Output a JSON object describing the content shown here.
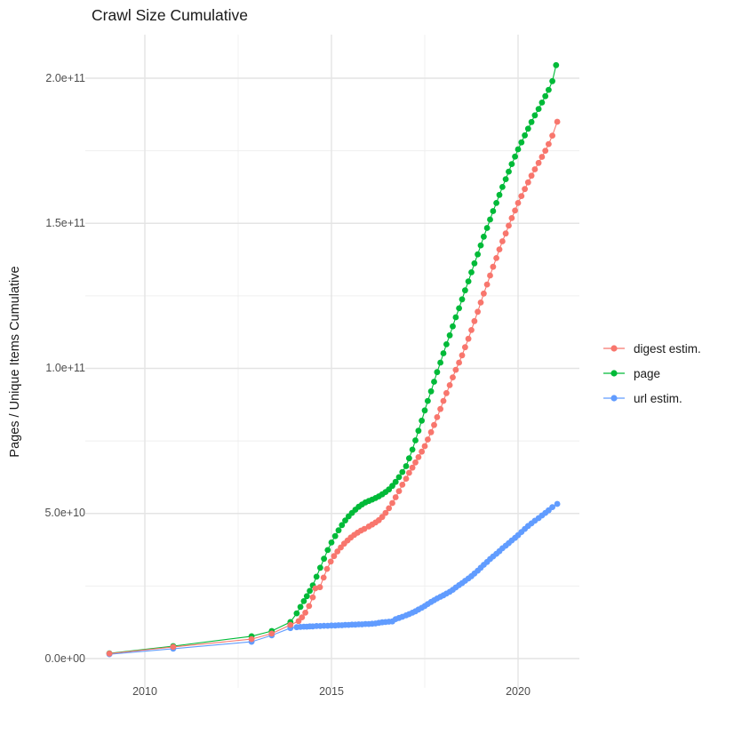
{
  "chart_data": {
    "type": "line",
    "title": "Crawl Size Cumulative",
    "xlabel": "",
    "ylabel": "Pages / Unique Items Cumulative",
    "value_unit": "1e9 pages (billions)",
    "grid": true,
    "legend_position": "right",
    "xlim": [
      2008.4,
      2021.7
    ],
    "ylim": [
      -10,
      215
    ],
    "x_ticks": [
      {
        "value": 2010,
        "label": "2010"
      },
      {
        "value": 2015,
        "label": "2015"
      },
      {
        "value": 2020,
        "label": "2020"
      }
    ],
    "x_minor_ticks": [
      2012.5,
      2017.5
    ],
    "y_ticks": [
      {
        "value": 0,
        "label": "0.0e+00"
      },
      {
        "value": 50,
        "label": "5.0e+10"
      },
      {
        "value": 100,
        "label": "1.0e+11"
      },
      {
        "value": 150,
        "label": "1.5e+11"
      },
      {
        "value": 200,
        "label": "2.0e+11"
      }
    ],
    "y_minor_ticks": [
      25,
      75,
      125,
      175
    ],
    "series": [
      {
        "name": "digest estim.",
        "color": "#F8766D",
        "points": [
          [
            2009.05,
            1.7
          ],
          [
            2010.76,
            4.0
          ],
          [
            2012.86,
            6.7
          ],
          [
            2013.4,
            8.6
          ],
          [
            2013.9,
            11.6
          ],
          [
            2014.12,
            12.9
          ],
          [
            2014.21,
            14.2
          ],
          [
            2014.3,
            15.8
          ],
          [
            2014.4,
            18.1
          ],
          [
            2014.5,
            21.1
          ],
          [
            2014.57,
            24.2
          ],
          [
            2014.69,
            24.6
          ],
          [
            2014.79,
            27.9
          ],
          [
            2014.88,
            30.9
          ],
          [
            2014.98,
            33.4
          ],
          [
            2015.07,
            35.3
          ],
          [
            2015.16,
            36.9
          ],
          [
            2015.25,
            38.3
          ],
          [
            2015.34,
            39.6
          ],
          [
            2015.43,
            40.7
          ],
          [
            2015.52,
            41.7
          ],
          [
            2015.61,
            42.6
          ],
          [
            2015.7,
            43.4
          ],
          [
            2015.79,
            44.1
          ],
          [
            2015.88,
            44.7
          ],
          [
            2016.0,
            45.5
          ],
          [
            2016.09,
            46.2
          ],
          [
            2016.18,
            46.9
          ],
          [
            2016.27,
            47.7
          ],
          [
            2016.36,
            48.8
          ],
          [
            2016.45,
            50.2
          ],
          [
            2016.54,
            51.8
          ],
          [
            2016.63,
            53.6
          ],
          [
            2016.72,
            55.6
          ],
          [
            2016.81,
            57.7
          ],
          [
            2016.9,
            59.9
          ],
          [
            2017.0,
            62.0
          ],
          [
            2017.08,
            64.0
          ],
          [
            2017.17,
            65.8
          ],
          [
            2017.25,
            67.6
          ],
          [
            2017.33,
            69.4
          ],
          [
            2017.42,
            71.3
          ],
          [
            2017.5,
            73.2
          ],
          [
            2017.58,
            75.5
          ],
          [
            2017.67,
            78.0
          ],
          [
            2017.75,
            80.5
          ],
          [
            2017.83,
            83.2
          ],
          [
            2017.92,
            86.0
          ],
          [
            2018.0,
            88.8
          ],
          [
            2018.08,
            91.5
          ],
          [
            2018.17,
            94.2
          ],
          [
            2018.25,
            96.9
          ],
          [
            2018.33,
            99.5
          ],
          [
            2018.42,
            102.0
          ],
          [
            2018.5,
            104.5
          ],
          [
            2018.58,
            107.3
          ],
          [
            2018.67,
            110.2
          ],
          [
            2018.75,
            113.2
          ],
          [
            2018.83,
            116.3
          ],
          [
            2018.92,
            119.5
          ],
          [
            2019.0,
            122.7
          ],
          [
            2019.08,
            125.8
          ],
          [
            2019.17,
            128.9
          ],
          [
            2019.25,
            132.0
          ],
          [
            2019.33,
            135.0
          ],
          [
            2019.42,
            138.0
          ],
          [
            2019.5,
            141.0
          ],
          [
            2019.58,
            143.8
          ],
          [
            2019.67,
            146.5
          ],
          [
            2019.75,
            149.2
          ],
          [
            2019.83,
            151.8
          ],
          [
            2019.92,
            154.4
          ],
          [
            2020.0,
            157.0
          ],
          [
            2020.09,
            159.4
          ],
          [
            2020.18,
            161.8
          ],
          [
            2020.27,
            164.1
          ],
          [
            2020.36,
            166.4
          ],
          [
            2020.45,
            168.6
          ],
          [
            2020.55,
            170.8
          ],
          [
            2020.64,
            172.9
          ],
          [
            2020.73,
            175.0
          ],
          [
            2020.82,
            177.3
          ],
          [
            2020.92,
            180.2
          ],
          [
            2021.05,
            185.0
          ]
        ]
      },
      {
        "name": "page",
        "color": "#00BA38",
        "points": [
          [
            2009.05,
            1.8
          ],
          [
            2010.76,
            4.3
          ],
          [
            2012.86,
            7.7
          ],
          [
            2013.4,
            9.5
          ],
          [
            2013.9,
            12.6
          ],
          [
            2014.07,
            15.6
          ],
          [
            2014.17,
            17.8
          ],
          [
            2014.26,
            19.8
          ],
          [
            2014.34,
            21.5
          ],
          [
            2014.42,
            23.3
          ],
          [
            2014.5,
            25.2
          ],
          [
            2014.6,
            28.2
          ],
          [
            2014.7,
            31.3
          ],
          [
            2014.8,
            34.4
          ],
          [
            2014.9,
            37.4
          ],
          [
            2015.0,
            40.0
          ],
          [
            2015.1,
            42.2
          ],
          [
            2015.19,
            44.2
          ],
          [
            2015.28,
            46.0
          ],
          [
            2015.37,
            47.6
          ],
          [
            2015.46,
            49.0
          ],
          [
            2015.55,
            50.2
          ],
          [
            2015.64,
            51.3
          ],
          [
            2015.73,
            52.3
          ],
          [
            2015.82,
            53.1
          ],
          [
            2015.91,
            53.8
          ],
          [
            2016.0,
            54.3
          ],
          [
            2016.09,
            54.8
          ],
          [
            2016.18,
            55.3
          ],
          [
            2016.27,
            55.9
          ],
          [
            2016.36,
            56.6
          ],
          [
            2016.45,
            57.4
          ],
          [
            2016.54,
            58.3
          ],
          [
            2016.63,
            59.5
          ],
          [
            2016.72,
            60.9
          ],
          [
            2016.81,
            62.5
          ],
          [
            2016.9,
            64.3
          ],
          [
            2017.0,
            66.3
          ],
          [
            2017.08,
            69.0
          ],
          [
            2017.17,
            72.0
          ],
          [
            2017.25,
            75.2
          ],
          [
            2017.33,
            78.5
          ],
          [
            2017.42,
            82.0
          ],
          [
            2017.5,
            85.5
          ],
          [
            2017.58,
            88.8
          ],
          [
            2017.67,
            92.1
          ],
          [
            2017.75,
            95.4
          ],
          [
            2017.83,
            98.7
          ],
          [
            2017.92,
            102.0
          ],
          [
            2018.0,
            105.2
          ],
          [
            2018.08,
            108.3
          ],
          [
            2018.17,
            111.4
          ],
          [
            2018.25,
            114.5
          ],
          [
            2018.33,
            117.6
          ],
          [
            2018.42,
            120.7
          ],
          [
            2018.5,
            123.8
          ],
          [
            2018.58,
            126.9
          ],
          [
            2018.67,
            130.0
          ],
          [
            2018.75,
            133.1
          ],
          [
            2018.83,
            136.2
          ],
          [
            2018.92,
            139.3
          ],
          [
            2019.0,
            142.4
          ],
          [
            2019.08,
            145.4
          ],
          [
            2019.17,
            148.4
          ],
          [
            2019.25,
            151.3
          ],
          [
            2019.33,
            154.2
          ],
          [
            2019.42,
            157.0
          ],
          [
            2019.5,
            159.8
          ],
          [
            2019.58,
            162.5
          ],
          [
            2019.67,
            165.2
          ],
          [
            2019.75,
            167.8
          ],
          [
            2019.83,
            170.4
          ],
          [
            2019.92,
            173.0
          ],
          [
            2020.0,
            175.5
          ],
          [
            2020.09,
            177.9
          ],
          [
            2020.18,
            180.3
          ],
          [
            2020.27,
            182.6
          ],
          [
            2020.36,
            184.9
          ],
          [
            2020.45,
            187.2
          ],
          [
            2020.55,
            189.4
          ],
          [
            2020.64,
            191.6
          ],
          [
            2020.73,
            193.8
          ],
          [
            2020.82,
            196.0
          ],
          [
            2020.92,
            199.0
          ],
          [
            2021.02,
            204.5
          ]
        ]
      },
      {
        "name": "url estim.",
        "color": "#619CFF",
        "points": [
          [
            2009.05,
            1.5
          ],
          [
            2010.76,
            3.4
          ],
          [
            2012.86,
            5.8
          ],
          [
            2013.4,
            8.0
          ],
          [
            2013.9,
            10.5
          ],
          [
            2014.07,
            10.8
          ],
          [
            2014.17,
            10.9
          ],
          [
            2014.26,
            11.0
          ],
          [
            2014.34,
            11.0
          ],
          [
            2014.42,
            11.1
          ],
          [
            2014.5,
            11.1
          ],
          [
            2014.6,
            11.2
          ],
          [
            2014.7,
            11.2
          ],
          [
            2014.8,
            11.3
          ],
          [
            2014.9,
            11.3
          ],
          [
            2015.0,
            11.4
          ],
          [
            2015.1,
            11.4
          ],
          [
            2015.19,
            11.5
          ],
          [
            2015.28,
            11.5
          ],
          [
            2015.37,
            11.6
          ],
          [
            2015.46,
            11.6
          ],
          [
            2015.55,
            11.7
          ],
          [
            2015.64,
            11.7
          ],
          [
            2015.73,
            11.8
          ],
          [
            2015.82,
            11.8
          ],
          [
            2015.91,
            11.9
          ],
          [
            2016.0,
            11.9
          ],
          [
            2016.09,
            12.0
          ],
          [
            2016.18,
            12.1
          ],
          [
            2016.27,
            12.3
          ],
          [
            2016.36,
            12.5
          ],
          [
            2016.45,
            12.6
          ],
          [
            2016.54,
            12.7
          ],
          [
            2016.63,
            12.8
          ],
          [
            2016.72,
            13.6
          ],
          [
            2016.81,
            14.0
          ],
          [
            2016.9,
            14.4
          ],
          [
            2017.0,
            14.9
          ],
          [
            2017.08,
            15.3
          ],
          [
            2017.17,
            15.8
          ],
          [
            2017.25,
            16.3
          ],
          [
            2017.33,
            16.9
          ],
          [
            2017.42,
            17.5
          ],
          [
            2017.5,
            18.1
          ],
          [
            2017.58,
            18.8
          ],
          [
            2017.67,
            19.5
          ],
          [
            2017.75,
            20.1
          ],
          [
            2017.83,
            20.7
          ],
          [
            2017.92,
            21.3
          ],
          [
            2018.0,
            21.8
          ],
          [
            2018.08,
            22.4
          ],
          [
            2018.17,
            23.0
          ],
          [
            2018.25,
            23.7
          ],
          [
            2018.33,
            24.5
          ],
          [
            2018.42,
            25.3
          ],
          [
            2018.5,
            26.0
          ],
          [
            2018.58,
            26.8
          ],
          [
            2018.67,
            27.6
          ],
          [
            2018.75,
            28.4
          ],
          [
            2018.83,
            29.3
          ],
          [
            2018.92,
            30.3
          ],
          [
            2019.0,
            31.3
          ],
          [
            2019.08,
            32.3
          ],
          [
            2019.17,
            33.3
          ],
          [
            2019.25,
            34.3
          ],
          [
            2019.33,
            35.2
          ],
          [
            2019.42,
            36.1
          ],
          [
            2019.5,
            37.0
          ],
          [
            2019.58,
            38.0
          ],
          [
            2019.67,
            38.9
          ],
          [
            2019.75,
            39.8
          ],
          [
            2019.83,
            40.7
          ],
          [
            2019.92,
            41.6
          ],
          [
            2020.0,
            42.5
          ],
          [
            2020.09,
            43.6
          ],
          [
            2020.18,
            44.7
          ],
          [
            2020.27,
            45.7
          ],
          [
            2020.36,
            46.6
          ],
          [
            2020.45,
            47.5
          ],
          [
            2020.55,
            48.4
          ],
          [
            2020.64,
            49.3
          ],
          [
            2020.73,
            50.2
          ],
          [
            2020.82,
            51.1
          ],
          [
            2020.92,
            52.2
          ],
          [
            2021.05,
            53.3
          ]
        ]
      }
    ]
  },
  "style": {
    "grid_major_color": "#e4e4e4",
    "grid_minor_color": "#efefef",
    "tick_label_color": "#4d4d4d",
    "text_color": "#1a1a1a",
    "background": "#ffffff"
  }
}
